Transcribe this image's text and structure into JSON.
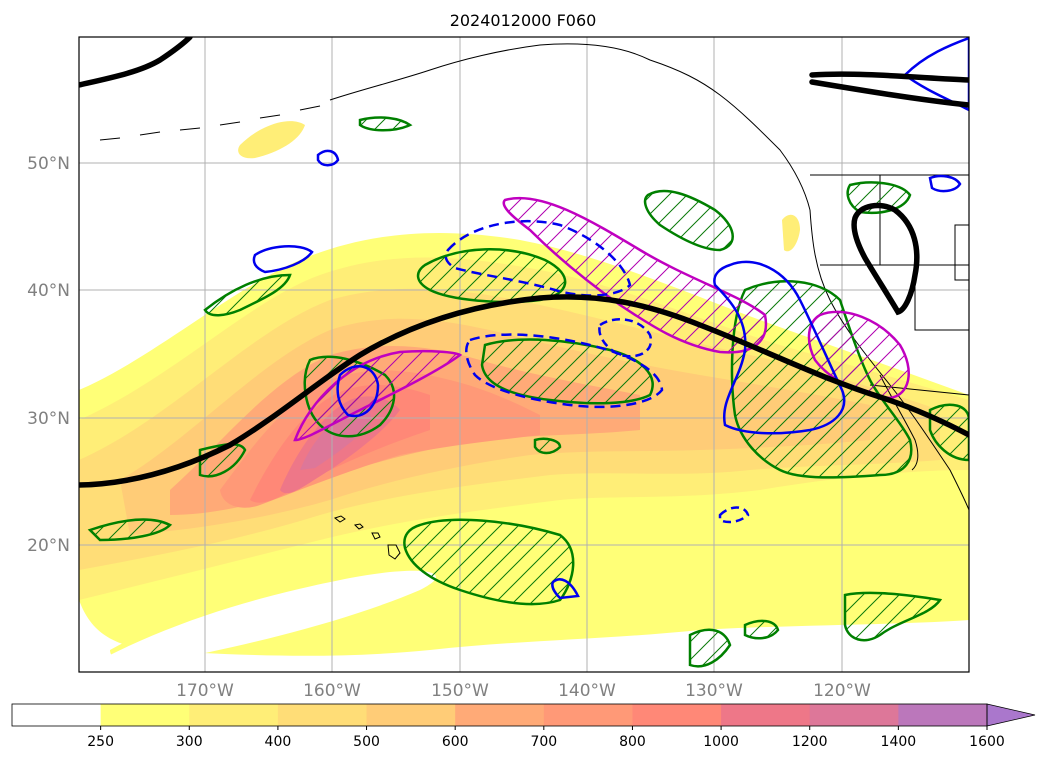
{
  "title": "2024012000 F060",
  "map": {
    "lat_labels": [
      "50°N",
      "40°N",
      "30°N",
      "20°N"
    ],
    "lon_labels": [
      "170°W",
      "160°W",
      "150°W",
      "140°W",
      "130°W",
      "120°W"
    ],
    "grid": true,
    "fill_variable_colors": [
      "#ffffff",
      "#ffff77",
      "#ffee77",
      "#ffdd77",
      "#ffcc77",
      "#ffaa77",
      "#ff9977",
      "#ff8877",
      "#ee7788",
      "#dd7799",
      "#bb77bb",
      "#aa77cc"
    ],
    "overlay_colors": {
      "jet_axis": "#000000",
      "hatched_regions": "#008000",
      "magenta_regions": "#c000c0",
      "blue_contours": "#0000ff"
    }
  },
  "colorbar": {
    "ticks": [
      "250",
      "300",
      "400",
      "500",
      "600",
      "700",
      "800",
      "1000",
      "1200",
      "1400",
      "1600"
    ],
    "colors": [
      "#ffffff",
      "#ffff77",
      "#ffee77",
      "#ffdd77",
      "#ffcc77",
      "#ffaa77",
      "#ff9977",
      "#ff8877",
      "#ee7788",
      "#dd7799",
      "#bb77bb",
      "#aa77cc"
    ],
    "extend": "max"
  }
}
